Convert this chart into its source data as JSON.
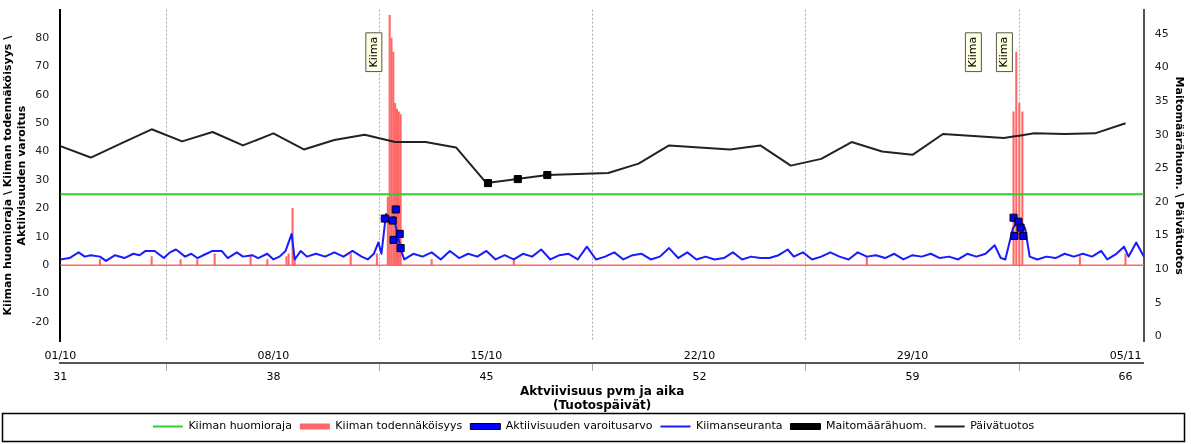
{
  "chart_data": {
    "type": "line",
    "xlabel": "Aktviivisuus pvm ja aika\n(Tuotospäivät)",
    "ylabel": "Kiiman huomioraja \\ Kiiman todennäköisyys \\ Aktiivisuuden varoitus",
    "y2label": "Maitomäärähuom. \\ Päivätuotos",
    "xlim": [
      31,
      66.6
    ],
    "xticks": [
      31,
      38,
      45,
      52,
      59,
      66
    ],
    "x2lim": [
      "--10-01",
      "--11-05T14:24"
    ],
    "x2ticks": [
      {
        "value": "--10-01",
        "label": "01/10"
      },
      {
        "value": "--10-08",
        "label": "08/10"
      },
      {
        "value": "--10-15",
        "label": "15/10"
      },
      {
        "value": "--10-22",
        "label": "22/10"
      },
      {
        "value": "--10-29",
        "label": "29/10"
      },
      {
        "value": "--11-05",
        "label": "05/11"
      }
    ],
    "ylim": [
      -27,
      90
    ],
    "yticks": [
      -20,
      -10,
      0,
      10,
      20,
      30,
      40,
      50,
      60,
      70,
      80
    ],
    "y2lim": [
      -0.8,
      48.6
    ],
    "y2ticks": [
      0,
      5,
      10,
      15,
      20,
      25,
      30,
      35,
      40,
      45
    ],
    "grid": "x",
    "legend": "bottom",
    "ref_lines": [
      {
        "axis": "y",
        "value": 0,
        "color": "#ff6666"
      }
    ],
    "annotations": [
      {
        "text": "Kiima",
        "x": 41.3,
        "y": 75
      },
      {
        "text": "Kiima",
        "x": 61.0,
        "y": 75
      },
      {
        "text": "Kiima",
        "x": 62.02,
        "y": 75
      }
    ],
    "series": [
      {
        "name": "Kiiman huomioraja",
        "type": "line",
        "color": "#33cc33",
        "marker": "none",
        "x": [
          31,
          66.6
        ],
        "values": [
          25,
          25
        ]
      },
      {
        "name": "Kiiman todennäköisyys",
        "type": "bar",
        "color": "#ff6666",
        "x": [
          32.3,
          34.0,
          34.95,
          35.5,
          36.07,
          37.25,
          37.8,
          38.43,
          38.5,
          38.63,
          38.7,
          40.54,
          41.4,
          41.76,
          41.82,
          41.88,
          41.94,
          42.0,
          42.06,
          42.12,
          42.18,
          43.2,
          45.9,
          57.5,
          62.32,
          62.41,
          62.51,
          62.61,
          64.5,
          66.0
        ],
        "values": [
          2,
          3,
          2,
          2,
          4,
          3,
          2,
          3,
          4,
          20,
          3,
          4,
          4,
          24,
          88,
          80,
          75,
          57,
          55,
          54,
          53,
          2,
          2,
          3,
          54,
          75,
          57,
          54,
          3,
          4
        ]
      },
      {
        "name": "Aktiivisuuden varoitusarvo",
        "type": "scatter",
        "color": "#0000ff",
        "marker": "square",
        "x": [
          41.66,
          41.92,
          42.02,
          41.95,
          42.15,
          42.18,
          62.32,
          62.48,
          62.55,
          62.35,
          62.64
        ],
        "values": [
          16.4,
          15.7,
          19.6,
          8.9,
          11,
          6,
          16.7,
          15.3,
          13.2,
          10.3,
          10.3
        ]
      },
      {
        "name": "Kiimanseuranta",
        "type": "line",
        "color": "#1a1aff",
        "marker": "none",
        "x": [
          31,
          31.3,
          31.6,
          31.8,
          32,
          32.3,
          32.5,
          32.8,
          33.1,
          33.4,
          33.6,
          33.8,
          34.1,
          34.4,
          34.6,
          34.8,
          35.1,
          35.3,
          35.5,
          35.8,
          36,
          36.3,
          36.5,
          36.8,
          37,
          37.3,
          37.5,
          37.8,
          38,
          38.2,
          38.4,
          38.6,
          38.7,
          38.9,
          39.1,
          39.4,
          39.7,
          40,
          40.3,
          40.6,
          40.9,
          41.1,
          41.3,
          41.45,
          41.55,
          41.7,
          41.85,
          41.95,
          42.1,
          42.2,
          42.3,
          42.6,
          42.9,
          43.2,
          43.5,
          43.8,
          44.1,
          44.4,
          44.7,
          45,
          45.3,
          45.6,
          45.9,
          46.2,
          46.5,
          46.8,
          47.1,
          47.4,
          47.7,
          48,
          48.3,
          48.6,
          48.9,
          49.2,
          49.5,
          49.8,
          50.1,
          50.4,
          50.7,
          51,
          51.3,
          51.6,
          51.9,
          52.2,
          52.5,
          52.8,
          53.1,
          53.4,
          53.7,
          54,
          54.3,
          54.6,
          54.9,
          55.1,
          55.4,
          55.7,
          56,
          56.3,
          56.6,
          56.9,
          57.2,
          57.5,
          57.8,
          58.1,
          58.4,
          58.7,
          59,
          59.3,
          59.6,
          59.9,
          60.2,
          60.5,
          60.8,
          61.1,
          61.4,
          61.7,
          61.9,
          62.05,
          62.3,
          62.5,
          62.7,
          62.85,
          63.1,
          63.4,
          63.7,
          64,
          64.3,
          64.6,
          64.9,
          65.2,
          65.4,
          65.7,
          65.95,
          66.1,
          66.35,
          66.6
        ],
        "values": [
          2,
          2.5,
          4.5,
          3,
          3.5,
          3,
          1.5,
          3.5,
          2.5,
          4,
          3.5,
          5,
          5,
          2.5,
          4.5,
          5.5,
          3,
          4,
          2.5,
          4,
          5,
          5,
          2.5,
          4.5,
          3,
          3.5,
          2.5,
          4,
          2,
          3,
          5,
          11,
          2,
          5,
          3,
          4,
          3,
          4.5,
          3,
          5,
          3,
          2,
          4,
          8,
          4,
          18,
          15,
          17,
          10,
          5,
          2,
          4,
          3,
          4.5,
          2,
          5,
          2.5,
          4,
          3,
          5,
          2,
          3.5,
          2,
          4,
          3,
          5.5,
          2,
          3.5,
          4,
          2,
          6.5,
          2,
          3,
          4.5,
          2,
          3.5,
          4,
          2,
          3,
          6,
          2.5,
          4.5,
          2,
          3,
          2,
          2.5,
          4.5,
          2,
          3,
          2.5,
          2.5,
          3.5,
          5.5,
          3,
          4.5,
          2,
          3,
          4.5,
          3,
          2,
          4.5,
          3,
          3.5,
          2.5,
          4,
          2,
          3.5,
          3,
          4,
          2.5,
          3,
          2,
          4,
          3,
          4,
          7,
          2.5,
          2,
          13,
          16,
          13,
          3,
          2,
          3,
          2.5,
          4,
          3,
          4,
          3,
          5,
          2,
          4,
          6.5,
          3,
          8,
          3
        ]
      },
      {
        "name": "Maitomäärähuom.",
        "type": "scatter",
        "axis": "y2",
        "color": "#000000",
        "marker": "square",
        "x": [
          45.05,
          46.03,
          47.0
        ],
        "values": [
          22.8,
          23.4,
          24.0
        ]
      },
      {
        "name": "Päivätuotos",
        "type": "line",
        "axis": "y2",
        "color": "#222222",
        "marker": "none",
        "x": [
          31,
          32,
          33,
          34,
          35,
          36,
          37,
          38,
          39,
          40,
          41,
          42,
          43,
          44,
          45,
          46,
          47,
          49,
          50,
          51,
          53,
          54,
          55,
          56,
          57,
          58,
          59,
          60,
          62,
          63,
          64,
          65,
          66
        ],
        "values": [
          28.3,
          26.6,
          28.7,
          30.8,
          29.0,
          30.4,
          28.4,
          30.2,
          27.8,
          29.2,
          30.0,
          28.9,
          28.9,
          28.1,
          22.8,
          23.4,
          24.0,
          24.3,
          25.7,
          28.4,
          27.8,
          28.4,
          25.4,
          26.4,
          28.9,
          27.5,
          27.0,
          30.1,
          29.5,
          30.2,
          30.1,
          30.2,
          31.7
        ]
      }
    ]
  }
}
